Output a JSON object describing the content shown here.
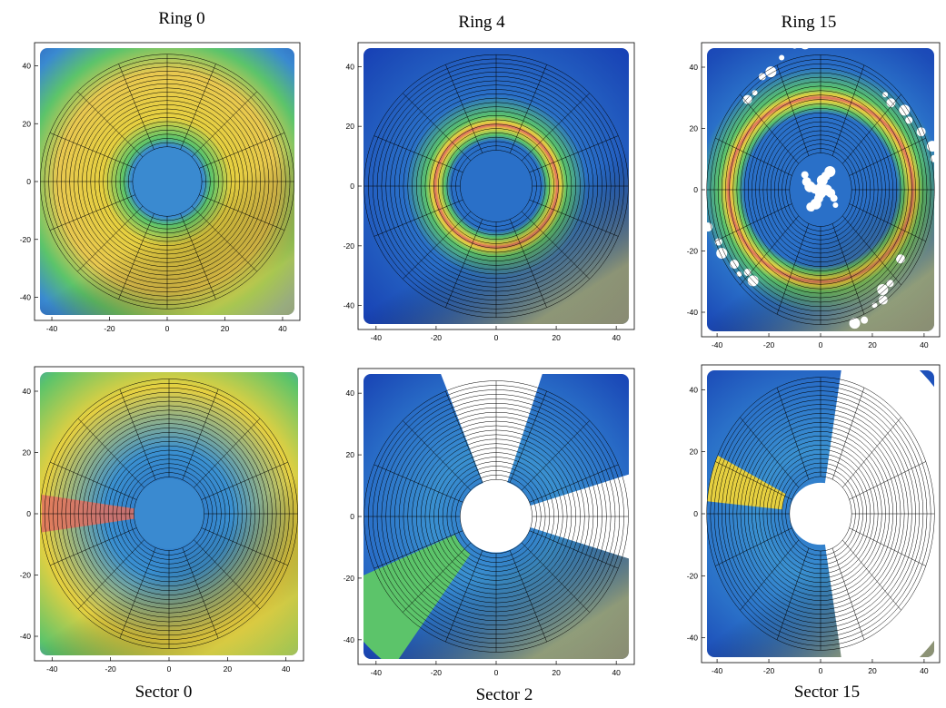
{
  "chart_data": [
    {
      "type": "heatmap",
      "title": "Ring 0",
      "selection": {
        "kind": "ring",
        "index": 0
      },
      "xticks": [
        "-40",
        "-20",
        "0",
        "20",
        "40"
      ],
      "yticks": [
        "40",
        "20",
        "0",
        "-20",
        "-40"
      ],
      "xlim": [
        -46,
        46
      ],
      "ylim": [
        -48,
        48
      ],
      "inner_radius": 12,
      "outer_radius": 44,
      "rings": 22,
      "sectors": 16
    },
    {
      "type": "heatmap",
      "title": "Ring 4",
      "selection": {
        "kind": "ring",
        "index": 4
      },
      "xticks": [
        "-40",
        "-20",
        "0",
        "20",
        "40"
      ],
      "yticks": [
        "40",
        "20",
        "0",
        "-20",
        "-40"
      ],
      "xlim": [
        -46,
        46
      ],
      "ylim": [
        -48,
        48
      ],
      "inner_radius": 12,
      "outer_radius": 44,
      "rings": 22,
      "sectors": 16
    },
    {
      "type": "heatmap",
      "title": "Ring 15",
      "selection": {
        "kind": "ring",
        "index": 15
      },
      "xticks": [
        "-40",
        "-20",
        "0",
        "20",
        "40"
      ],
      "yticks": [
        "40",
        "20",
        "0",
        "-20",
        "-40"
      ],
      "xlim": [
        -46,
        46
      ],
      "ylim": [
        -48,
        48
      ],
      "inner_radius": 12,
      "outer_radius": 44,
      "rings": 22,
      "sectors": 16
    },
    {
      "type": "heatmap",
      "title": "Sector 0",
      "selection": {
        "kind": "sector",
        "index": 0
      },
      "xticks": [
        "-40",
        "-20",
        "0",
        "20",
        "40"
      ],
      "yticks": [
        "40",
        "20",
        "0",
        "-20",
        "-40"
      ],
      "xlim": [
        -46,
        46
      ],
      "ylim": [
        -48,
        48
      ],
      "inner_radius": 12,
      "outer_radius": 44,
      "rings": 22,
      "sectors": 16
    },
    {
      "type": "heatmap",
      "title": "Sector 2",
      "selection": {
        "kind": "sector",
        "index": 2
      },
      "xticks": [
        "-40",
        "-20",
        "0",
        "20",
        "40"
      ],
      "yticks": [
        "40",
        "20",
        "0",
        "-20",
        "-40"
      ],
      "xlim": [
        -46,
        46
      ],
      "ylim": [
        -48,
        48
      ],
      "inner_radius": 12,
      "outer_radius": 44,
      "rings": 22,
      "sectors": 16
    },
    {
      "type": "heatmap",
      "title": "Sector 15",
      "selection": {
        "kind": "sector",
        "index": 15
      },
      "xticks": [
        "-40",
        "-20",
        "0",
        "20",
        "40"
      ],
      "yticks": [
        "40",
        "20",
        "0",
        "-20",
        "-40"
      ],
      "xlim": [
        -46,
        46
      ],
      "ylim": [
        -48,
        48
      ],
      "inner_radius": 12,
      "outer_radius": 44,
      "rings": 22,
      "sectors": 16
    }
  ],
  "colors": {
    "low": "#1438b4",
    "mid_low": "#3a8ad0",
    "mid": "#5cc46a",
    "high": "#e6d040",
    "peak": "#e07060"
  }
}
